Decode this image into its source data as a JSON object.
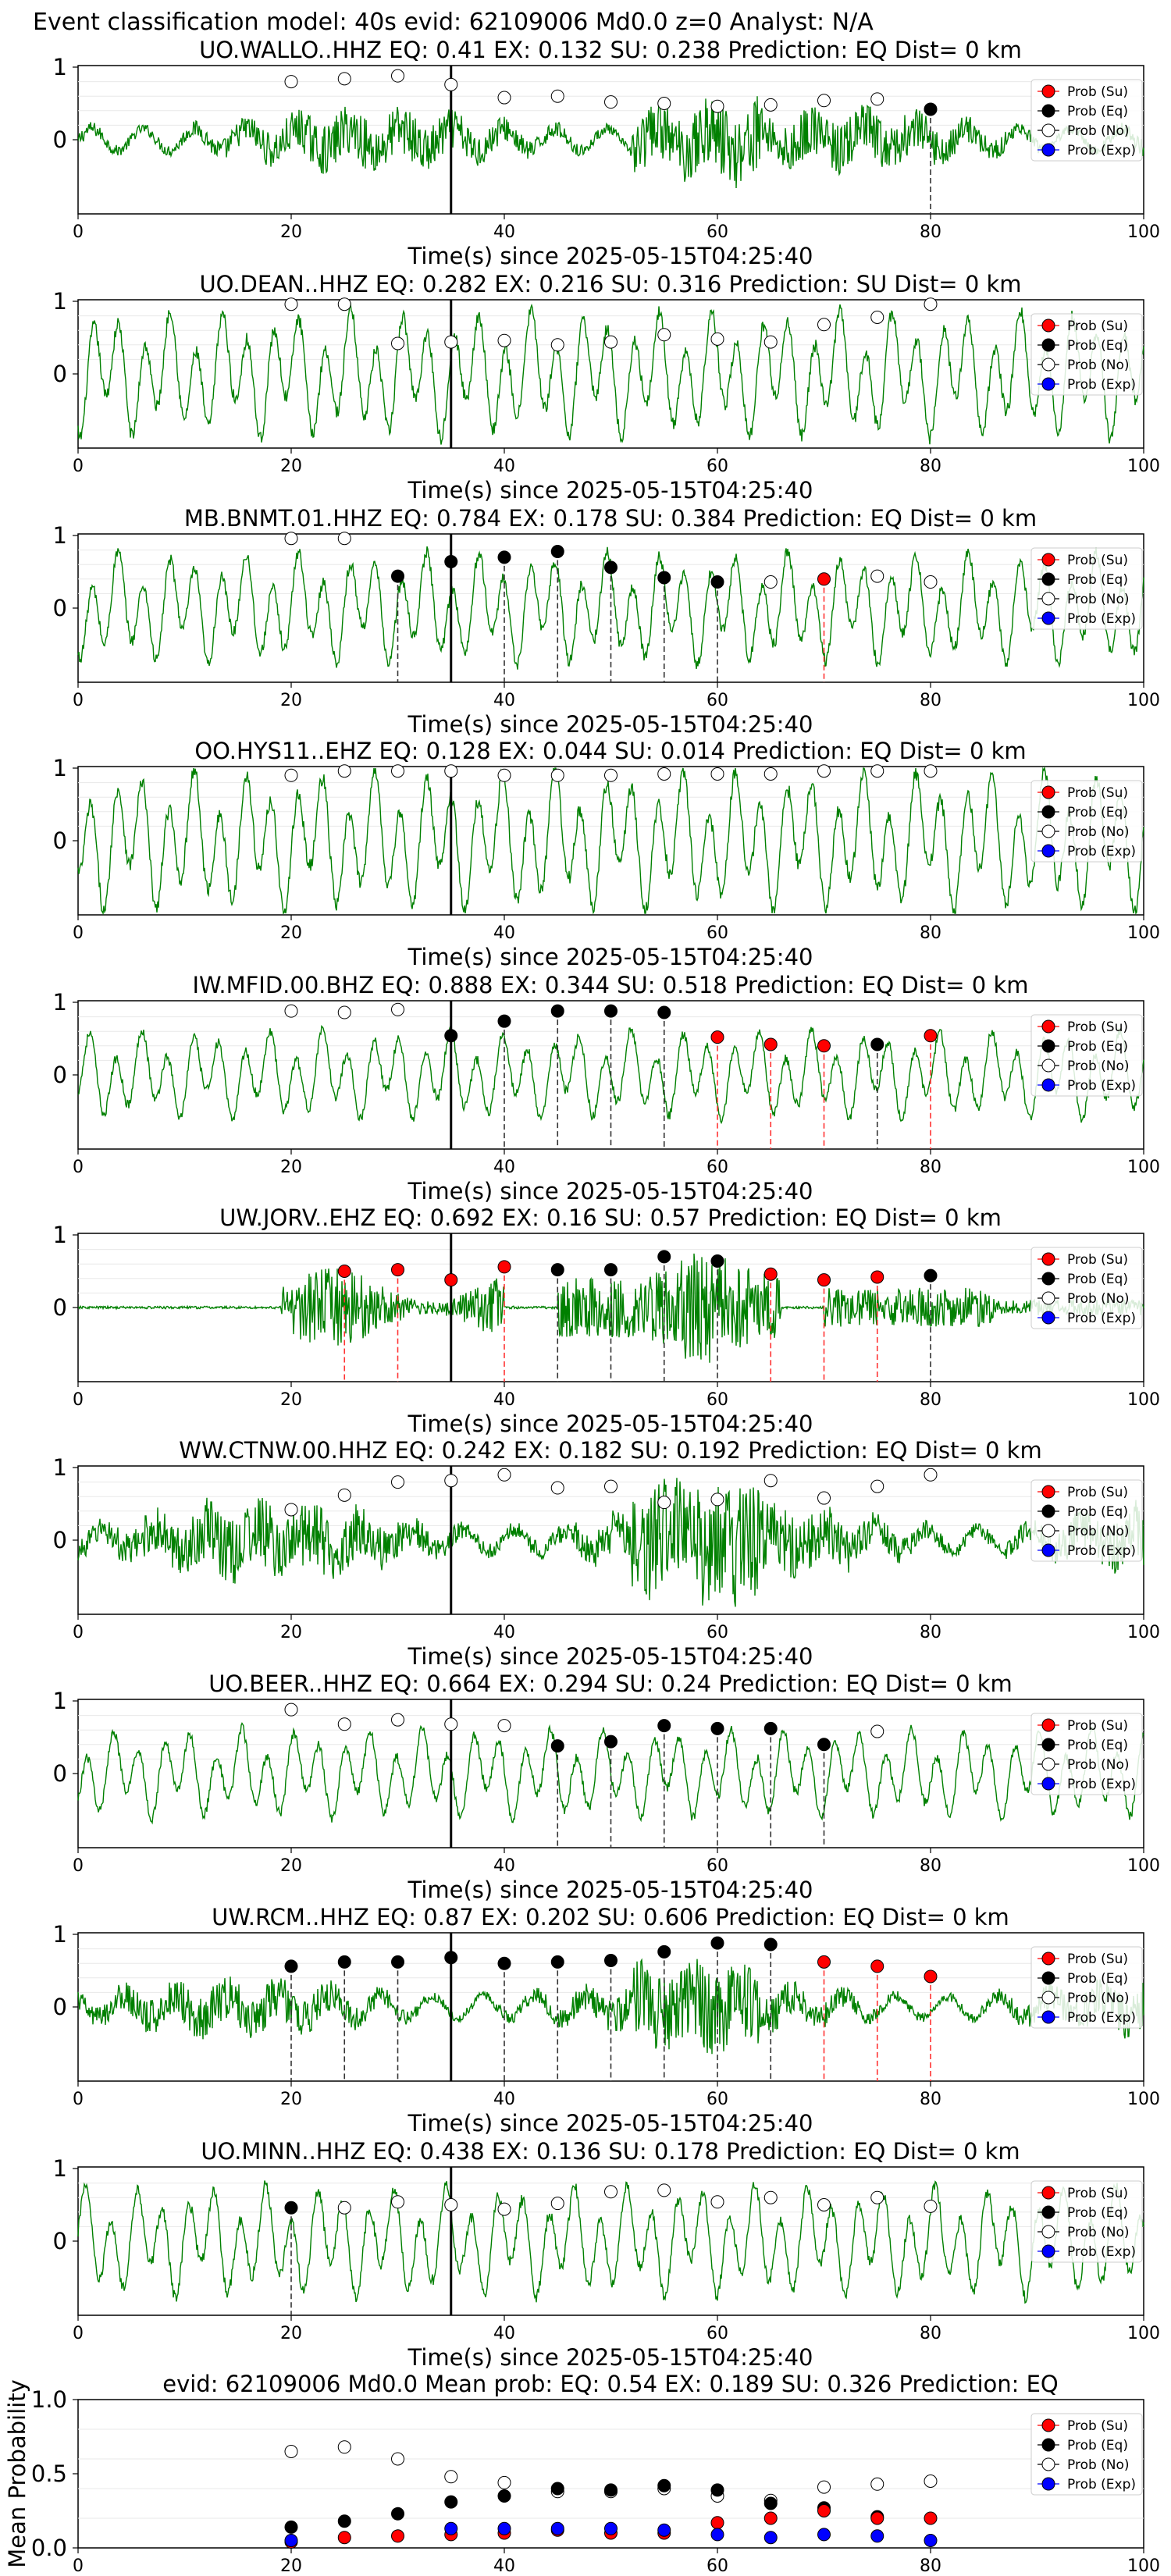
{
  "figure": {
    "suptitle": "Event classification model: 40s evid: 62109006 Md0.0 z=0 Analyst: N/A",
    "xlabel": "Time(s) since 2025-05-15T04:25:40",
    "legend": [
      "Prob (Su)",
      "Prob (Eq)",
      "Prob (No)",
      "Prob (Exp)"
    ],
    "colors": {
      "trace": "#008000",
      "su": "#ff0000",
      "eq": "#000000",
      "no": "#ffffff",
      "exp": "#0000ff"
    }
  },
  "chart_data": [
    {
      "type": "line",
      "title": "UO.WALLO..HHZ    EQ: 0.41   EX: 0.132   SU: 0.238    Prediction: EQ     Dist= 0 km",
      "style": "noisy",
      "amp": 0.4,
      "xlim": [
        0,
        100
      ],
      "yticks": [
        1,
        0
      ],
      "probs": [
        {
          "t": 20,
          "c": "no",
          "p": 0.8
        },
        {
          "t": 25,
          "c": "no",
          "p": 0.84
        },
        {
          "t": 30,
          "c": "no",
          "p": 0.88
        },
        {
          "t": 35,
          "c": "no",
          "p": 0.76
        },
        {
          "t": 40,
          "c": "no",
          "p": 0.58
        },
        {
          "t": 45,
          "c": "no",
          "p": 0.6
        },
        {
          "t": 50,
          "c": "no",
          "p": 0.52
        },
        {
          "t": 55,
          "c": "no",
          "p": 0.5
        },
        {
          "t": 60,
          "c": "no",
          "p": 0.46
        },
        {
          "t": 65,
          "c": "no",
          "p": 0.48
        },
        {
          "t": 70,
          "c": "no",
          "p": 0.54
        },
        {
          "t": 75,
          "c": "no",
          "p": 0.56
        },
        {
          "t": 80,
          "c": "eq",
          "p": 0.42
        }
      ]
    },
    {
      "type": "line",
      "title": "UO.DEAN..HHZ    EQ: 0.282   EX: 0.216   SU: 0.316    Prediction: SU     Dist= 0 km",
      "style": "wave",
      "amp": 0.85,
      "xlim": [
        0,
        100
      ],
      "yticks": [
        1,
        0
      ],
      "probs": [
        {
          "t": 20,
          "c": "no",
          "p": 0.96
        },
        {
          "t": 25,
          "c": "no",
          "p": 0.96
        },
        {
          "t": 30,
          "c": "no",
          "p": 0.42
        },
        {
          "t": 35,
          "c": "no",
          "p": 0.44
        },
        {
          "t": 40,
          "c": "no",
          "p": 0.46
        },
        {
          "t": 45,
          "c": "no",
          "p": 0.4
        },
        {
          "t": 50,
          "c": "no",
          "p": 0.44
        },
        {
          "t": 55,
          "c": "no",
          "p": 0.54
        },
        {
          "t": 60,
          "c": "no",
          "p": 0.48
        },
        {
          "t": 65,
          "c": "no",
          "p": 0.44
        },
        {
          "t": 70,
          "c": "no",
          "p": 0.68
        },
        {
          "t": 75,
          "c": "no",
          "p": 0.78
        },
        {
          "t": 80,
          "c": "no",
          "p": 0.96
        }
      ]
    },
    {
      "type": "line",
      "title": "MB.BNMT.01.HHZ    EQ: 0.784   EX: 0.178   SU: 0.384    Prediction: EQ     Dist= 0 km",
      "style": "wave",
      "amp": 0.75,
      "xlim": [
        0,
        100
      ],
      "yticks": [
        1,
        0
      ],
      "probs": [
        {
          "t": 20,
          "c": "no",
          "p": 0.96
        },
        {
          "t": 25,
          "c": "no",
          "p": 0.96
        },
        {
          "t": 30,
          "c": "eq",
          "p": 0.44
        },
        {
          "t": 35,
          "c": "eq",
          "p": 0.64
        },
        {
          "t": 40,
          "c": "eq",
          "p": 0.7
        },
        {
          "t": 45,
          "c": "eq",
          "p": 0.78
        },
        {
          "t": 50,
          "c": "eq",
          "p": 0.56
        },
        {
          "t": 55,
          "c": "eq",
          "p": 0.42
        },
        {
          "t": 60,
          "c": "eq",
          "p": 0.36
        },
        {
          "t": 65,
          "c": "no",
          "p": 0.36
        },
        {
          "t": 70,
          "c": "su",
          "p": 0.4
        },
        {
          "t": 75,
          "c": "no",
          "p": 0.44
        },
        {
          "t": 80,
          "c": "no",
          "p": 0.36
        }
      ]
    },
    {
      "type": "line",
      "title": "OO.HYS11..EHZ    EQ: 0.128   EX: 0.044   SU: 0.014    Prediction: EQ     Dist= 0 km",
      "style": "wave",
      "amp": 0.95,
      "xlim": [
        0,
        100
      ],
      "yticks": [
        1,
        0
      ],
      "probs": [
        {
          "t": 20,
          "c": "no",
          "p": 0.9
        },
        {
          "t": 25,
          "c": "no",
          "p": 0.96
        },
        {
          "t": 30,
          "c": "no",
          "p": 0.96
        },
        {
          "t": 35,
          "c": "no",
          "p": 0.96
        },
        {
          "t": 40,
          "c": "no",
          "p": 0.9
        },
        {
          "t": 45,
          "c": "no",
          "p": 0.9
        },
        {
          "t": 50,
          "c": "no",
          "p": 0.9
        },
        {
          "t": 55,
          "c": "no",
          "p": 0.92
        },
        {
          "t": 60,
          "c": "no",
          "p": 0.92
        },
        {
          "t": 65,
          "c": "no",
          "p": 0.92
        },
        {
          "t": 70,
          "c": "no",
          "p": 0.96
        },
        {
          "t": 75,
          "c": "no",
          "p": 0.96
        },
        {
          "t": 80,
          "c": "no",
          "p": 0.96
        }
      ]
    },
    {
      "type": "line",
      "title": "IW.MFID.00.BHZ    EQ: 0.888   EX: 0.344   SU: 0.518    Prediction: EQ     Dist= 0 km",
      "style": "wave",
      "amp": 0.6,
      "xlim": [
        0,
        100
      ],
      "yticks": [
        1,
        0
      ],
      "probs": [
        {
          "t": 20,
          "c": "no",
          "p": 0.88
        },
        {
          "t": 25,
          "c": "no",
          "p": 0.86
        },
        {
          "t": 30,
          "c": "no",
          "p": 0.9
        },
        {
          "t": 35,
          "c": "eq",
          "p": 0.54
        },
        {
          "t": 40,
          "c": "eq",
          "p": 0.74
        },
        {
          "t": 45,
          "c": "eq",
          "p": 0.88
        },
        {
          "t": 50,
          "c": "eq",
          "p": 0.88
        },
        {
          "t": 55,
          "c": "eq",
          "p": 0.86
        },
        {
          "t": 60,
          "c": "su",
          "p": 0.52
        },
        {
          "t": 65,
          "c": "su",
          "p": 0.42
        },
        {
          "t": 70,
          "c": "su",
          "p": 0.4
        },
        {
          "t": 75,
          "c": "eq",
          "p": 0.42
        },
        {
          "t": 80,
          "c": "su",
          "p": 0.54
        }
      ]
    },
    {
      "type": "line",
      "title": "UW.JORV..EHZ    EQ: 0.692   EX: 0.16   SU: 0.57    Prediction: EQ     Dist= 0 km",
      "style": "burst",
      "amp": 0.9,
      "xlim": [
        0,
        100
      ],
      "yticks": [
        1,
        0
      ],
      "probs": [
        {
          "t": 25,
          "c": "su",
          "p": 0.5
        },
        {
          "t": 30,
          "c": "su",
          "p": 0.52
        },
        {
          "t": 35,
          "c": "su",
          "p": 0.38
        },
        {
          "t": 40,
          "c": "su",
          "p": 0.56
        },
        {
          "t": 45,
          "c": "eq",
          "p": 0.52
        },
        {
          "t": 50,
          "c": "eq",
          "p": 0.52
        },
        {
          "t": 55,
          "c": "eq",
          "p": 0.7
        },
        {
          "t": 60,
          "c": "eq",
          "p": 0.64
        },
        {
          "t": 65,
          "c": "su",
          "p": 0.46
        },
        {
          "t": 70,
          "c": "su",
          "p": 0.38
        },
        {
          "t": 75,
          "c": "su",
          "p": 0.42
        },
        {
          "t": 80,
          "c": "eq",
          "p": 0.44
        }
      ]
    },
    {
      "type": "line",
      "title": "WW.CTNW.00.HHZ    EQ: 0.242   EX: 0.182   SU: 0.192    Prediction: EQ     Dist= 0 km",
      "style": "noisy",
      "amp": 0.55,
      "xlim": [
        0,
        100
      ],
      "yticks": [
        1,
        0
      ],
      "probs": [
        {
          "t": 20,
          "c": "no",
          "p": 0.42
        },
        {
          "t": 25,
          "c": "no",
          "p": 0.62
        },
        {
          "t": 30,
          "c": "no",
          "p": 0.8
        },
        {
          "t": 35,
          "c": "no",
          "p": 0.82
        },
        {
          "t": 40,
          "c": "no",
          "p": 0.9
        },
        {
          "t": 45,
          "c": "no",
          "p": 0.72
        },
        {
          "t": 50,
          "c": "no",
          "p": 0.74
        },
        {
          "t": 55,
          "c": "no",
          "p": 0.52
        },
        {
          "t": 60,
          "c": "no",
          "p": 0.56
        },
        {
          "t": 65,
          "c": "no",
          "p": 0.82
        },
        {
          "t": 70,
          "c": "no",
          "p": 0.58
        },
        {
          "t": 75,
          "c": "no",
          "p": 0.74
        },
        {
          "t": 80,
          "c": "no",
          "p": 0.9
        }
      ]
    },
    {
      "type": "line",
      "title": "UO.BEER..HHZ    EQ: 0.664   EX: 0.294   SU: 0.24    Prediction: EQ     Dist= 0 km",
      "style": "wave",
      "amp": 0.6,
      "xlim": [
        0,
        100
      ],
      "yticks": [
        1,
        0
      ],
      "probs": [
        {
          "t": 20,
          "c": "no",
          "p": 0.88
        },
        {
          "t": 25,
          "c": "no",
          "p": 0.68
        },
        {
          "t": 30,
          "c": "no",
          "p": 0.74
        },
        {
          "t": 35,
          "c": "no",
          "p": 0.68
        },
        {
          "t": 40,
          "c": "no",
          "p": 0.66
        },
        {
          "t": 45,
          "c": "eq",
          "p": 0.38
        },
        {
          "t": 50,
          "c": "eq",
          "p": 0.44
        },
        {
          "t": 55,
          "c": "eq",
          "p": 0.66
        },
        {
          "t": 60,
          "c": "eq",
          "p": 0.62
        },
        {
          "t": 65,
          "c": "eq",
          "p": 0.62
        },
        {
          "t": 70,
          "c": "eq",
          "p": 0.4
        },
        {
          "t": 75,
          "c": "no",
          "p": 0.58
        }
      ]
    },
    {
      "type": "line",
      "title": "UW.RCM..HHZ    EQ: 0.87   EX: 0.202   SU: 0.606    Prediction: EQ     Dist= 0 km",
      "style": "noisy",
      "amp": 0.35,
      "xlim": [
        0,
        100
      ],
      "yticks": [
        1,
        0
      ],
      "probs": [
        {
          "t": 20,
          "c": "eq",
          "p": 0.56
        },
        {
          "t": 25,
          "c": "eq",
          "p": 0.62
        },
        {
          "t": 30,
          "c": "eq",
          "p": 0.62
        },
        {
          "t": 35,
          "c": "eq",
          "p": 0.68
        },
        {
          "t": 40,
          "c": "eq",
          "p": 0.6
        },
        {
          "t": 45,
          "c": "eq",
          "p": 0.62
        },
        {
          "t": 50,
          "c": "eq",
          "p": 0.64
        },
        {
          "t": 55,
          "c": "eq",
          "p": 0.76
        },
        {
          "t": 60,
          "c": "eq",
          "p": 0.88
        },
        {
          "t": 65,
          "c": "eq",
          "p": 0.86
        },
        {
          "t": 70,
          "c": "su",
          "p": 0.62
        },
        {
          "t": 75,
          "c": "su",
          "p": 0.56
        },
        {
          "t": 80,
          "c": "su",
          "p": 0.42
        }
      ]
    },
    {
      "type": "line",
      "title": "UO.MINN..HHZ    EQ: 0.438   EX: 0.136   SU: 0.178    Prediction: EQ     Dist= 0 km",
      "style": "wave",
      "amp": 0.75,
      "xlim": [
        0,
        100
      ],
      "yticks": [
        1,
        0
      ],
      "probs": [
        {
          "t": 20,
          "c": "eq",
          "p": 0.46
        },
        {
          "t": 25,
          "c": "no",
          "p": 0.46
        },
        {
          "t": 30,
          "c": "no",
          "p": 0.54
        },
        {
          "t": 35,
          "c": "no",
          "p": 0.5
        },
        {
          "t": 40,
          "c": "no",
          "p": 0.44
        },
        {
          "t": 45,
          "c": "no",
          "p": 0.52
        },
        {
          "t": 50,
          "c": "no",
          "p": 0.68
        },
        {
          "t": 55,
          "c": "no",
          "p": 0.7
        },
        {
          "t": 60,
          "c": "no",
          "p": 0.54
        },
        {
          "t": 65,
          "c": "no",
          "p": 0.6
        },
        {
          "t": 70,
          "c": "no",
          "p": 0.5
        },
        {
          "t": 75,
          "c": "no",
          "p": 0.6
        },
        {
          "t": 80,
          "c": "no",
          "p": 0.48
        }
      ]
    },
    {
      "type": "scatter",
      "title": "evid: 62109006   Md0.0    Mean prob:    EQ: 0.54   EX: 0.189   SU: 0.326    Prediction: EQ",
      "ylabel": "Mean Probability",
      "xlim": [
        0,
        100
      ],
      "ylim": [
        0,
        1
      ],
      "yticks": [
        "1.0",
        "0.5",
        "0.0"
      ],
      "x": [
        20,
        25,
        30,
        35,
        40,
        45,
        50,
        55,
        60,
        65,
        70,
        75,
        80
      ],
      "series": [
        {
          "name": "Prob (No)",
          "key": "no",
          "values": [
            0.65,
            0.68,
            0.6,
            0.48,
            0.44,
            0.38,
            0.38,
            0.4,
            0.35,
            0.32,
            0.41,
            0.43,
            0.45
          ]
        },
        {
          "name": "Prob (Eq)",
          "key": "eq",
          "values": [
            0.14,
            0.18,
            0.23,
            0.31,
            0.35,
            0.4,
            0.39,
            0.42,
            0.39,
            0.3,
            0.27,
            0.21,
            null
          ]
        },
        {
          "name": "Prob (Su)",
          "key": "su",
          "values": [
            0.04,
            0.07,
            0.08,
            0.09,
            0.1,
            0.12,
            0.1,
            0.1,
            0.17,
            0.2,
            0.25,
            0.2,
            0.2
          ]
        },
        {
          "name": "Prob (Exp)",
          "key": "exp",
          "values": [
            0.05,
            null,
            null,
            0.13,
            0.13,
            0.13,
            0.13,
            0.12,
            0.09,
            0.07,
            0.09,
            0.08,
            0.05
          ]
        }
      ]
    }
  ]
}
